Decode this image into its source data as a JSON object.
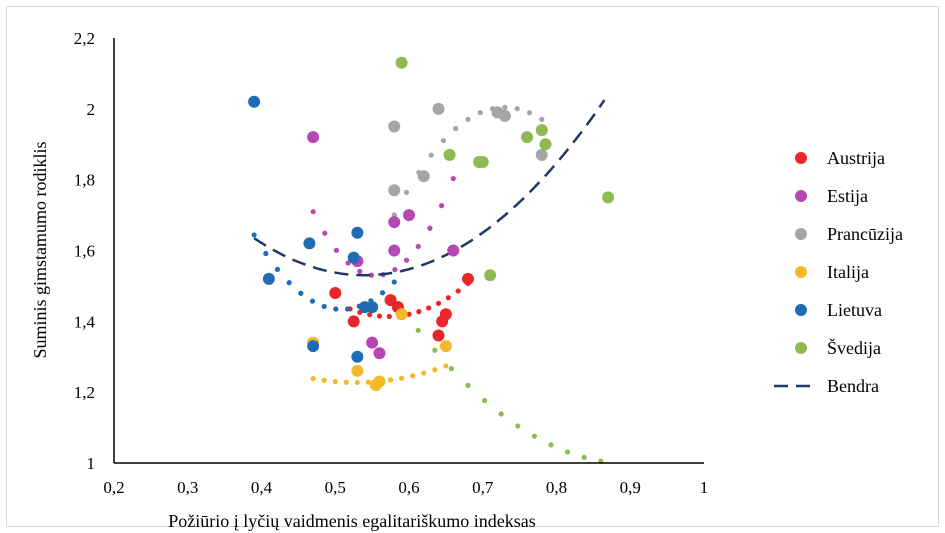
{
  "chart_data": {
    "type": "scatter",
    "xlabel": "Požiūrio į lyčių vaidmenis egalitariškumo indeksas",
    "ylabel": "Suminis gimstamumo rodiklis",
    "xlim": [
      0.2,
      1.0
    ],
    "ylim": [
      1.0,
      2.2
    ],
    "x_ticks": [
      "0,2",
      "0,3",
      "0,4",
      "0,5",
      "0,6",
      "0,7",
      "0,8",
      "0,9",
      "1"
    ],
    "y_ticks": [
      "1",
      "1,2",
      "1,4",
      "1,6",
      "1,8",
      "2",
      "2,2"
    ],
    "grid": false,
    "legend_position": "right",
    "series": [
      {
        "name": "Austrija",
        "color": "#e8262b",
        "points": [
          [
            0.5,
            1.48
          ],
          [
            0.525,
            1.4
          ],
          [
            0.575,
            1.46
          ],
          [
            0.585,
            1.44
          ],
          [
            0.64,
            1.36
          ],
          [
            0.645,
            1.4
          ],
          [
            0.65,
            1.42
          ],
          [
            0.68,
            1.52
          ]
        ],
        "trend": {
          "a": 8.0,
          "b": -9.15,
          "c": 4.03,
          "x_from": 0.52,
          "x_to": 0.68
        }
      },
      {
        "name": "Estija",
        "color": "#b548b4",
        "points": [
          [
            0.47,
            1.92
          ],
          [
            0.53,
            1.57
          ],
          [
            0.55,
            1.34
          ],
          [
            0.56,
            1.31
          ],
          [
            0.58,
            1.68
          ],
          [
            0.58,
            1.6
          ],
          [
            0.6,
            1.7
          ],
          [
            0.66,
            1.6
          ]
        ],
        "trend": {
          "a": 24.86,
          "b": -27.6,
          "c": 9.19,
          "x_from": 0.47,
          "x_to": 0.66
        }
      },
      {
        "name": "Prancūzija",
        "color": "#a5a5a5",
        "points": [
          [
            0.58,
            1.95
          ],
          [
            0.58,
            1.77
          ],
          [
            0.62,
            1.81
          ],
          [
            0.64,
            2.0
          ],
          [
            0.72,
            1.99
          ],
          [
            0.73,
            1.98
          ],
          [
            0.78,
            1.87
          ]
        ],
        "trend": {
          "a": -13.5,
          "b": 19.71,
          "c": -5.19,
          "x_from": 0.58,
          "x_to": 0.78
        }
      },
      {
        "name": "Italija",
        "color": "#f4b92a",
        "points": [
          [
            0.47,
            1.34
          ],
          [
            0.53,
            1.26
          ],
          [
            0.555,
            1.22
          ],
          [
            0.56,
            1.23
          ],
          [
            0.59,
            1.42
          ],
          [
            0.65,
            1.33
          ]
        ],
        "trend": {
          "a": 3.16,
          "b": -3.34,
          "c": 2.11,
          "x_from": 0.47,
          "x_to": 0.65
        }
      },
      {
        "name": "Lietuva",
        "color": "#1f6cb4",
        "points": [
          [
            0.39,
            2.02
          ],
          [
            0.41,
            1.52
          ],
          [
            0.465,
            1.62
          ],
          [
            0.47,
            1.33
          ],
          [
            0.53,
            1.65
          ],
          [
            0.525,
            1.58
          ],
          [
            0.54,
            1.44
          ],
          [
            0.55,
            1.44
          ],
          [
            0.53,
            1.3
          ]
        ],
        "trend": {
          "a": 15.0,
          "b": -15.25,
          "c": 5.31,
          "x_from": 0.39,
          "x_to": 0.58
        }
      },
      {
        "name": "Švedija",
        "color": "#8fba52",
        "points": [
          [
            0.59,
            2.13
          ],
          [
            0.655,
            1.87
          ],
          [
            0.695,
            1.85
          ],
          [
            0.7,
            1.85
          ],
          [
            0.71,
            1.53
          ],
          [
            0.76,
            1.92
          ],
          [
            0.78,
            1.94
          ],
          [
            0.785,
            1.9
          ],
          [
            0.87,
            1.75
          ]
        ],
        "trend": {
          "a": 4.5,
          "b": -8.12,
          "c": 4.66,
          "x_from": 0.59,
          "x_to": 0.86
        }
      }
    ],
    "overall": {
      "name": "Bendra",
      "color": "#1f3864",
      "a": 4.67,
      "b": -5.04,
      "c": 2.89,
      "x_from": 0.39,
      "x_to": 0.865
    }
  }
}
